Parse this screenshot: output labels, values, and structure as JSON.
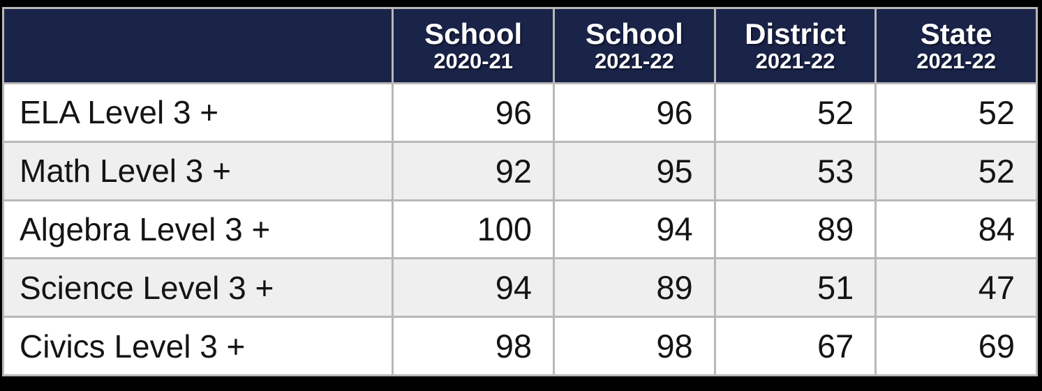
{
  "colors": {
    "frame": "#000000",
    "header_bg": "#1a2348",
    "header_text": "#ffffff",
    "border": "#b8b8b8",
    "row_bg": "#ffffff",
    "row_alt_bg": "#efefef",
    "cell_text": "#141414"
  },
  "table": {
    "columns": [
      {
        "label": "",
        "sublabel": ""
      },
      {
        "label": "School",
        "sublabel": "2020-21"
      },
      {
        "label": "School",
        "sublabel": "2021-22"
      },
      {
        "label": "District",
        "sublabel": "2021-22"
      },
      {
        "label": "State",
        "sublabel": "2021-22"
      }
    ],
    "rows": [
      {
        "label": "ELA Level 3 +",
        "values": [
          96,
          96,
          52,
          52
        ]
      },
      {
        "label": "Math Level 3 +",
        "values": [
          92,
          95,
          53,
          52
        ]
      },
      {
        "label": "Algebra Level 3 +",
        "values": [
          100,
          94,
          89,
          84
        ]
      },
      {
        "label": "Science Level 3 +",
        "values": [
          94,
          89,
          51,
          47
        ]
      },
      {
        "label": "Civics Level 3 +",
        "values": [
          98,
          98,
          67,
          69
        ]
      }
    ]
  },
  "chart_data": {
    "type": "table",
    "title": "",
    "categories": [
      "ELA Level 3 +",
      "Math Level 3 +",
      "Algebra Level 3 +",
      "Science Level 3 +",
      "Civics Level 3 +"
    ],
    "series": [
      {
        "name": "School 2020-21",
        "values": [
          96,
          92,
          100,
          94,
          98
        ]
      },
      {
        "name": "School 2021-22",
        "values": [
          96,
          95,
          94,
          89,
          98
        ]
      },
      {
        "name": "District 2021-22",
        "values": [
          52,
          53,
          89,
          51,
          67
        ]
      },
      {
        "name": "State 2021-22",
        "values": [
          52,
          52,
          84,
          47,
          69
        ]
      }
    ]
  }
}
